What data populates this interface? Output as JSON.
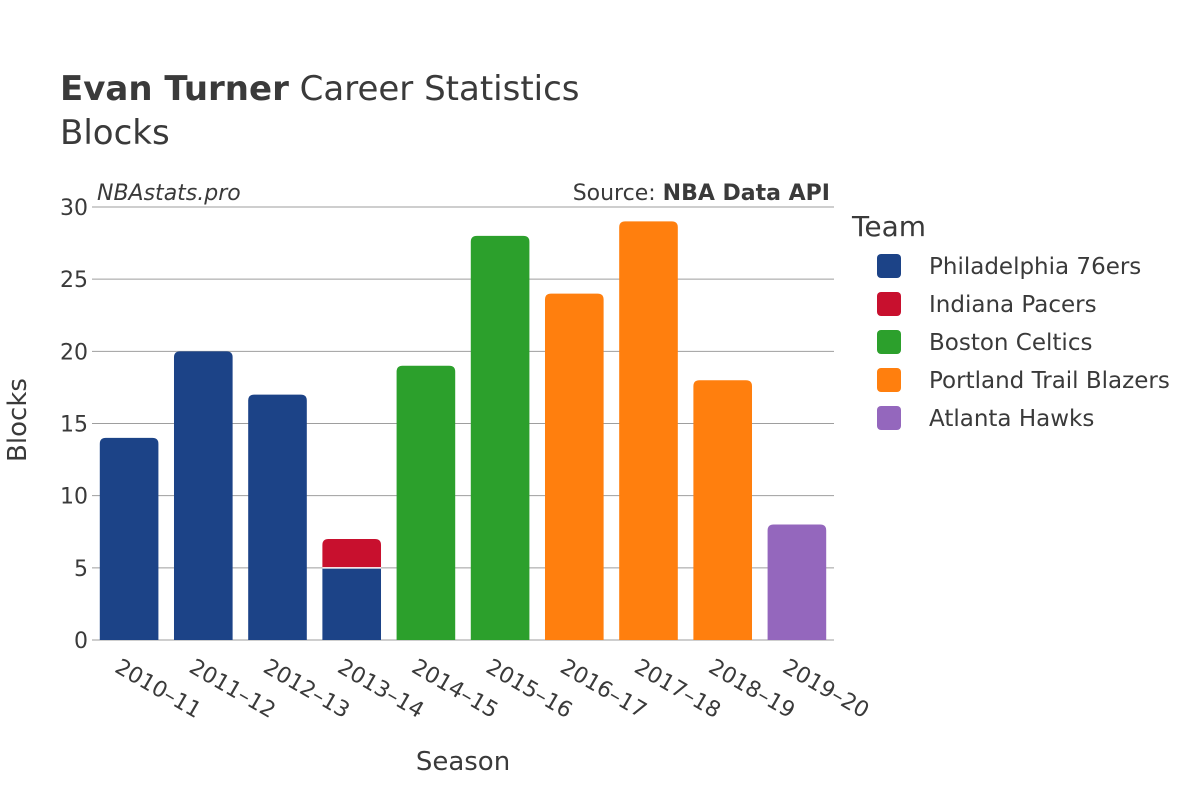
{
  "title": {
    "bold": "Evan Turner",
    "rest": " Career Statistics",
    "subtitle": "Blocks"
  },
  "watermark": "NBAstats.pro",
  "source": {
    "prefix": "Source: ",
    "name": "NBA Data API"
  },
  "chart_data": {
    "type": "bar",
    "stacked": true,
    "xlabel": "Season",
    "ylabel": "Blocks",
    "ylim": [
      0,
      30
    ],
    "yticks": [
      0,
      5,
      10,
      15,
      20,
      25,
      30
    ],
    "grid": true,
    "legend_title": "Team",
    "legend_position": "right",
    "categories": [
      "2010–11",
      "2011–12",
      "2012–13",
      "2013–14",
      "2014–15",
      "2015–16",
      "2016–17",
      "2017–18",
      "2018–19",
      "2019–20"
    ],
    "series": [
      {
        "name": "Philadelphia 76ers",
        "color": "#1c4387",
        "values": [
          14,
          20,
          17,
          5,
          0,
          0,
          0,
          0,
          0,
          0
        ]
      },
      {
        "name": "Indiana Pacers",
        "color": "#c8102e",
        "values": [
          0,
          0,
          0,
          2,
          0,
          0,
          0,
          0,
          0,
          0
        ]
      },
      {
        "name": "Boston Celtics",
        "color": "#2ca02c",
        "values": [
          0,
          0,
          0,
          0,
          19,
          28,
          0,
          0,
          0,
          0
        ]
      },
      {
        "name": "Portland Trail Blazers",
        "color": "#ff7f0e",
        "values": [
          0,
          0,
          0,
          0,
          0,
          0,
          24,
          29,
          18,
          0
        ]
      },
      {
        "name": "Atlanta Hawks",
        "color": "#9467bd",
        "values": [
          0,
          0,
          0,
          0,
          0,
          0,
          0,
          0,
          0,
          8
        ]
      }
    ]
  }
}
